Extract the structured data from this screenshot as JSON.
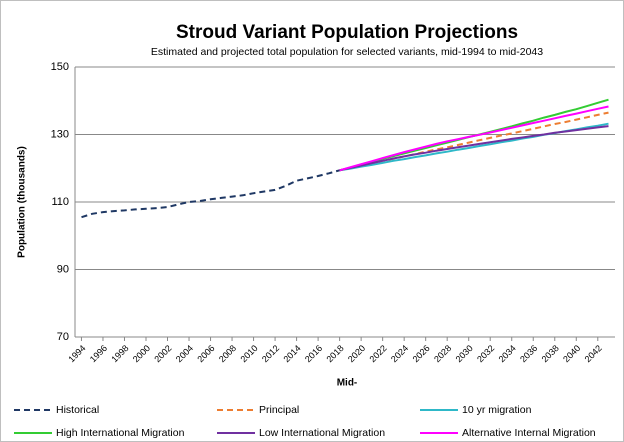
{
  "chart_data": {
    "type": "line",
    "title": "Stroud Variant Population Projections",
    "subtitle": "Estimated and projected total population for selected variants, mid-1994 to mid-2043",
    "x_label": "Mid-",
    "y_label": "Population (thousands)",
    "x": [
      1994,
      1995,
      1996,
      1997,
      1998,
      1999,
      2000,
      2001,
      2002,
      2003,
      2004,
      2005,
      2006,
      2007,
      2008,
      2009,
      2010,
      2011,
      2012,
      2013,
      2014,
      2015,
      2016,
      2017,
      2018,
      2019,
      2020,
      2021,
      2022,
      2023,
      2024,
      2025,
      2026,
      2027,
      2028,
      2029,
      2030,
      2031,
      2032,
      2033,
      2034,
      2035,
      2036,
      2037,
      2038,
      2039,
      2040,
      2041,
      2042,
      2043
    ],
    "xlim": [
      1993.4,
      2043.6
    ],
    "xticks": [
      1994,
      1996,
      1998,
      2000,
      2002,
      2004,
      2006,
      2008,
      2010,
      2012,
      2014,
      2016,
      2018,
      2020,
      2022,
      2024,
      2026,
      2028,
      2030,
      2032,
      2034,
      2036,
      2038,
      2040,
      2042
    ],
    "ylim": [
      70,
      150
    ],
    "yticks": [
      70,
      90,
      110,
      130,
      150
    ],
    "grid": true,
    "legend": "bottom",
    "series": [
      {
        "name": "Historical",
        "color": "#1f3864",
        "dashed": true,
        "values": [
          105.5,
          106.5,
          107.0,
          107.3,
          107.5,
          107.8,
          108.0,
          108.2,
          108.5,
          109.3,
          110.0,
          110.3,
          110.8,
          111.2,
          111.6,
          112.0,
          112.6,
          113.1,
          113.6,
          114.8,
          116.3,
          117.0,
          117.7,
          118.5,
          119.4,
          null,
          null,
          null,
          null,
          null,
          null,
          null,
          null,
          null,
          null,
          null,
          null,
          null,
          null,
          null,
          null,
          null,
          null,
          null,
          null,
          null,
          null,
          null,
          null,
          null
        ]
      },
      {
        "name": "Principal",
        "color": "#ed7d31",
        "dashed": true,
        "values": [
          null,
          null,
          null,
          null,
          null,
          null,
          null,
          null,
          null,
          null,
          null,
          null,
          null,
          null,
          null,
          null,
          null,
          null,
          null,
          null,
          null,
          null,
          null,
          null,
          119.4,
          120.1,
          120.8,
          121.5,
          122.2,
          122.8,
          123.5,
          124.2,
          124.9,
          125.6,
          126.2,
          126.9,
          127.6,
          128.3,
          129.0,
          129.7,
          130.3,
          131.0,
          131.7,
          132.4,
          133.1,
          133.7,
          134.4,
          135.1,
          135.8,
          136.5
        ]
      },
      {
        "name": "10 yr migration",
        "color": "#2eb8c8",
        "dashed": false,
        "values": [
          null,
          null,
          null,
          null,
          null,
          null,
          null,
          null,
          null,
          null,
          null,
          null,
          null,
          null,
          null,
          null,
          null,
          null,
          null,
          null,
          null,
          null,
          null,
          null,
          119.4,
          119.9,
          120.5,
          121.0,
          121.6,
          122.2,
          122.7,
          123.3,
          123.8,
          124.4,
          124.9,
          125.5,
          126.0,
          126.6,
          127.1,
          127.7,
          128.2,
          128.8,
          129.3,
          129.9,
          130.4,
          131.0,
          131.5,
          132.1,
          132.6,
          133.2
        ]
      },
      {
        "name": "High International Migration",
        "color": "#33cc33",
        "dashed": false,
        "values": [
          null,
          null,
          null,
          null,
          null,
          null,
          null,
          null,
          null,
          null,
          null,
          null,
          null,
          null,
          null,
          null,
          null,
          null,
          null,
          null,
          null,
          null,
          null,
          null,
          119.4,
          120.2,
          121.1,
          121.9,
          122.8,
          123.6,
          124.4,
          125.2,
          126.0,
          126.8,
          127.6,
          128.4,
          129.2,
          130.0,
          130.8,
          131.6,
          132.4,
          133.3,
          134.1,
          135.0,
          135.8,
          136.7,
          137.5,
          138.4,
          139.4,
          140.3
        ]
      },
      {
        "name": "Low International Migration",
        "color": "#7030a0",
        "dashed": false,
        "values": [
          null,
          null,
          null,
          null,
          null,
          null,
          null,
          null,
          null,
          null,
          null,
          null,
          null,
          null,
          null,
          null,
          null,
          null,
          null,
          null,
          null,
          null,
          null,
          null,
          119.4,
          120.1,
          120.8,
          121.5,
          122.2,
          122.9,
          123.5,
          124.1,
          124.6,
          125.2,
          125.7,
          126.2,
          126.7,
          127.2,
          127.7,
          128.2,
          128.7,
          129.1,
          129.6,
          130.0,
          130.5,
          130.9,
          131.3,
          131.7,
          132.1,
          132.5
        ]
      },
      {
        "name": "Alternative Internal Migration",
        "color": "#ff00ff",
        "dashed": false,
        "values": [
          null,
          null,
          null,
          null,
          null,
          null,
          null,
          null,
          null,
          null,
          null,
          null,
          null,
          null,
          null,
          null,
          null,
          null,
          null,
          null,
          null,
          null,
          null,
          null,
          119.4,
          120.3,
          121.2,
          122.1,
          123.0,
          123.9,
          124.8,
          125.6,
          126.4,
          127.2,
          128.0,
          128.6,
          129.3,
          129.9,
          130.6,
          131.3,
          132.0,
          132.7,
          133.4,
          134.1,
          134.8,
          135.5,
          136.2,
          136.9,
          137.6,
          138.3
        ]
      }
    ]
  }
}
